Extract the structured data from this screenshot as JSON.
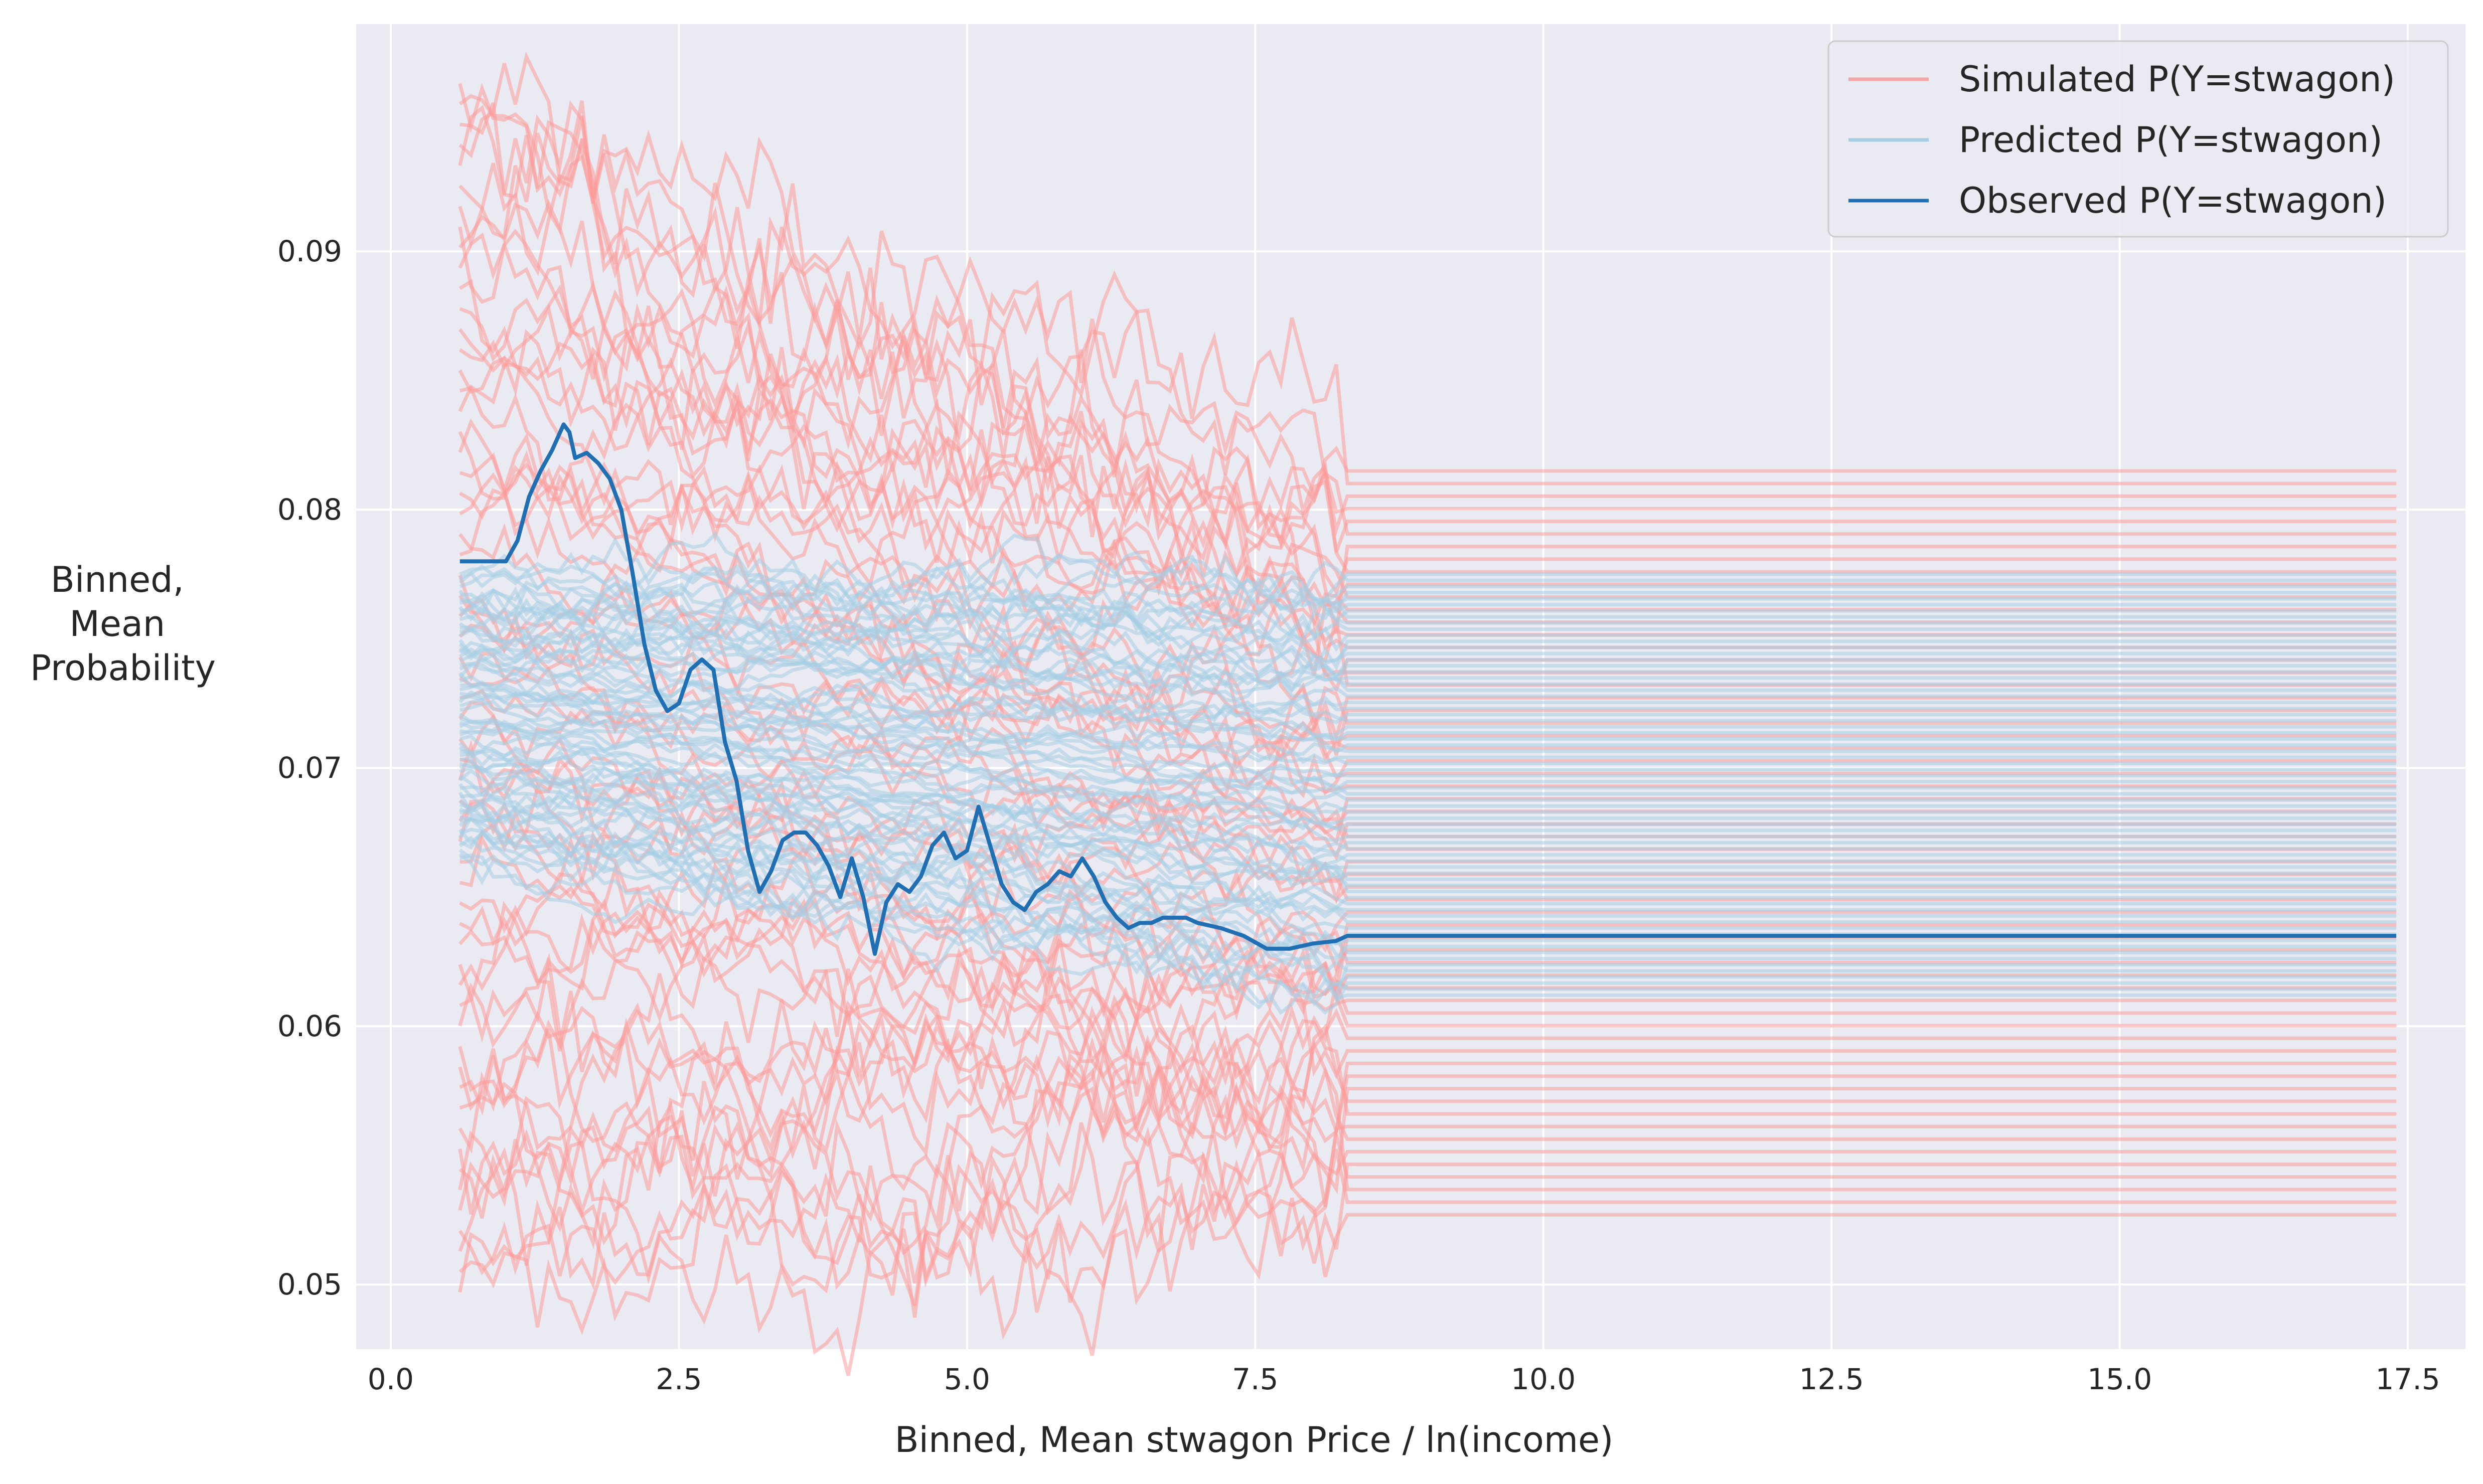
{
  "chart_data": {
    "type": "line",
    "xlabel": "Binned, Mean stwagon Price / ln(income)",
    "ylabel_lines": [
      "Binned,",
      "Mean",
      "Probability"
    ],
    "xlim": [
      -0.3,
      18.0
    ],
    "ylim": [
      0.0475,
      0.0988
    ],
    "xticks": [
      0.0,
      2.5,
      5.0,
      7.5,
      10.0,
      12.5,
      15.0,
      17.5
    ],
    "xtick_labels": [
      "0.0",
      "2.5",
      "5.0",
      "7.5",
      "10.0",
      "12.5",
      "15.0",
      "17.5"
    ],
    "yticks": [
      0.05,
      0.06,
      0.07,
      0.08,
      0.09
    ],
    "ytick_labels": [
      "0.05",
      "0.06",
      "0.07",
      "0.08",
      "0.09"
    ],
    "grid": true,
    "legend_position": "top-right",
    "legend": [
      {
        "label": "Simulated P(Y=stwagon)",
        "color": "#f4a5a8"
      },
      {
        "label": "Predicted P(Y=stwagon)",
        "color": "#a6cee3"
      },
      {
        "label": "Observed P(Y=stwagon)",
        "color": "#1f6fb2"
      }
    ],
    "colors": {
      "background": "#eaeaf2",
      "grid": "#ffffff",
      "simulated": "#fb9a99",
      "predicted": "#a6cee3",
      "observed": "#1f6fb2"
    },
    "simulated_band": {
      "x_start": 0.6,
      "x_flat": 8.3,
      "x_end": 17.4,
      "start_range": [
        0.0497,
        0.0965
      ],
      "end_range": [
        0.0527,
        0.0815
      ],
      "n_lines": 60
    },
    "predicted_band": {
      "x_start": 0.6,
      "x_flat": 8.3,
      "x_end": 17.4,
      "start_range": [
        0.0665,
        0.0775
      ],
      "end_range": [
        0.0612,
        0.0775
      ],
      "n_lines": 70
    },
    "observed_series": {
      "name": "Observed P(Y=stwagon)",
      "x": [
        0.6,
        1.0,
        1.1,
        1.2,
        1.3,
        1.4,
        1.5,
        1.55,
        1.6,
        1.7,
        1.8,
        1.9,
        2.0,
        2.1,
        2.2,
        2.3,
        2.4,
        2.5,
        2.6,
        2.7,
        2.8,
        2.9,
        3.0,
        3.1,
        3.2,
        3.3,
        3.4,
        3.5,
        3.6,
        3.7,
        3.8,
        3.9,
        4.0,
        4.1,
        4.2,
        4.3,
        4.4,
        4.5,
        4.6,
        4.7,
        4.8,
        4.9,
        5.0,
        5.1,
        5.2,
        5.3,
        5.4,
        5.5,
        5.6,
        5.7,
        5.8,
        5.9,
        6.0,
        6.1,
        6.2,
        6.3,
        6.4,
        6.5,
        6.6,
        6.7,
        6.8,
        6.9,
        7.0,
        7.2,
        7.4,
        7.6,
        7.8,
        8.0,
        8.2,
        8.3,
        17.4
      ],
      "y": [
        0.078,
        0.078,
        0.0788,
        0.0805,
        0.0815,
        0.0823,
        0.0833,
        0.083,
        0.082,
        0.0822,
        0.0818,
        0.0812,
        0.08,
        0.0775,
        0.0748,
        0.073,
        0.0722,
        0.0725,
        0.0738,
        0.0742,
        0.0738,
        0.071,
        0.0695,
        0.0668,
        0.0652,
        0.066,
        0.0672,
        0.0675,
        0.0675,
        0.067,
        0.0662,
        0.065,
        0.0665,
        0.065,
        0.0628,
        0.0648,
        0.0655,
        0.0652,
        0.0658,
        0.067,
        0.0675,
        0.0665,
        0.0668,
        0.0685,
        0.067,
        0.0655,
        0.0648,
        0.0645,
        0.0652,
        0.0655,
        0.066,
        0.0658,
        0.0665,
        0.0658,
        0.0648,
        0.0642,
        0.0638,
        0.064,
        0.064,
        0.0642,
        0.0642,
        0.0642,
        0.064,
        0.0638,
        0.0635,
        0.063,
        0.063,
        0.0632,
        0.0633,
        0.0635,
        0.0635
      ]
    }
  }
}
